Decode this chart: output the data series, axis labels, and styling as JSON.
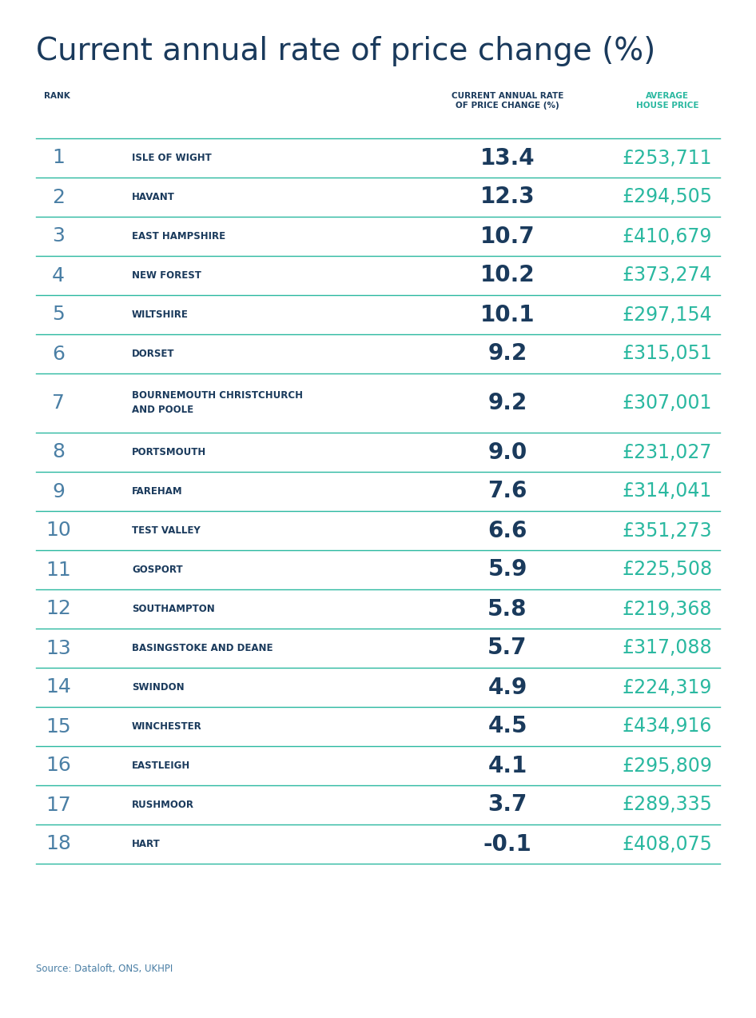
{
  "title": "Current annual rate of price change (%)",
  "title_color": "#1a3a5c",
  "header_rank": "RANK",
  "header_rate": "CURRENT ANNUAL RATE\nOF PRICE CHANGE (%)",
  "header_price": "AVERAGE\nHOUSE PRICE",
  "header_rank_color": "#1a3a5c",
  "header_rate_color": "#1a3a5c",
  "header_price_color": "#2ab8a0",
  "source_text": "Source: Dataloft, ONS, UKHPI",
  "source_color": "#4a7fa5",
  "background_color": "#ffffff",
  "rank_color": "#4a7fa5",
  "name_color": "#1a3a5c",
  "rate_color": "#1a3a5c",
  "price_color": "#2ab8a0",
  "divider_color": "#2ab8a0",
  "rows": [
    {
      "rank": "1",
      "name": "ISLE OF WIGHT",
      "rate": "13.4",
      "price": "£253,711"
    },
    {
      "rank": "2",
      "name": "HAVANT",
      "rate": "12.3",
      "price": "£294,505"
    },
    {
      "rank": "3",
      "name": "EAST HAMPSHIRE",
      "rate": "10.7",
      "price": "£410,679"
    },
    {
      "rank": "4",
      "name": "NEW FOREST",
      "rate": "10.2",
      "price": "£373,274"
    },
    {
      "rank": "5",
      "name": "WILTSHIRE",
      "rate": "10.1",
      "price": "£297,154"
    },
    {
      "rank": "6",
      "name": "DORSET",
      "rate": "9.2",
      "price": "£315,051"
    },
    {
      "rank": "7",
      "name": "BOURNEMOUTH CHRISTCHURCH\nAND POOLE",
      "rate": "9.2",
      "price": "£307,001"
    },
    {
      "rank": "8",
      "name": "PORTSMOUTH",
      "rate": "9.0",
      "price": "£231,027"
    },
    {
      "rank": "9",
      "name": "FAREHAM",
      "rate": "7.6",
      "price": "£314,041"
    },
    {
      "rank": "10",
      "name": "TEST VALLEY",
      "rate": "6.6",
      "price": "£351,273"
    },
    {
      "rank": "11",
      "name": "GOSPORT",
      "rate": "5.9",
      "price": "£225,508"
    },
    {
      "rank": "12",
      "name": "SOUTHAMPTON",
      "rate": "5.8",
      "price": "£219,368"
    },
    {
      "rank": "13",
      "name": "BASINGSTOKE AND DEANE",
      "rate": "5.7",
      "price": "£317,088"
    },
    {
      "rank": "14",
      "name": "SWINDON",
      "rate": "4.9",
      "price": "£224,319"
    },
    {
      "rank": "15",
      "name": "WINCHESTER",
      "rate": "4.5",
      "price": "£434,916"
    },
    {
      "rank": "16",
      "name": "EASTLEIGH",
      "rate": "4.1",
      "price": "£295,809"
    },
    {
      "rank": "17",
      "name": "RUSHMOOR",
      "rate": "3.7",
      "price": "£289,335"
    },
    {
      "rank": "18",
      "name": "HART",
      "rate": "-0.1",
      "price": "£408,075"
    }
  ]
}
